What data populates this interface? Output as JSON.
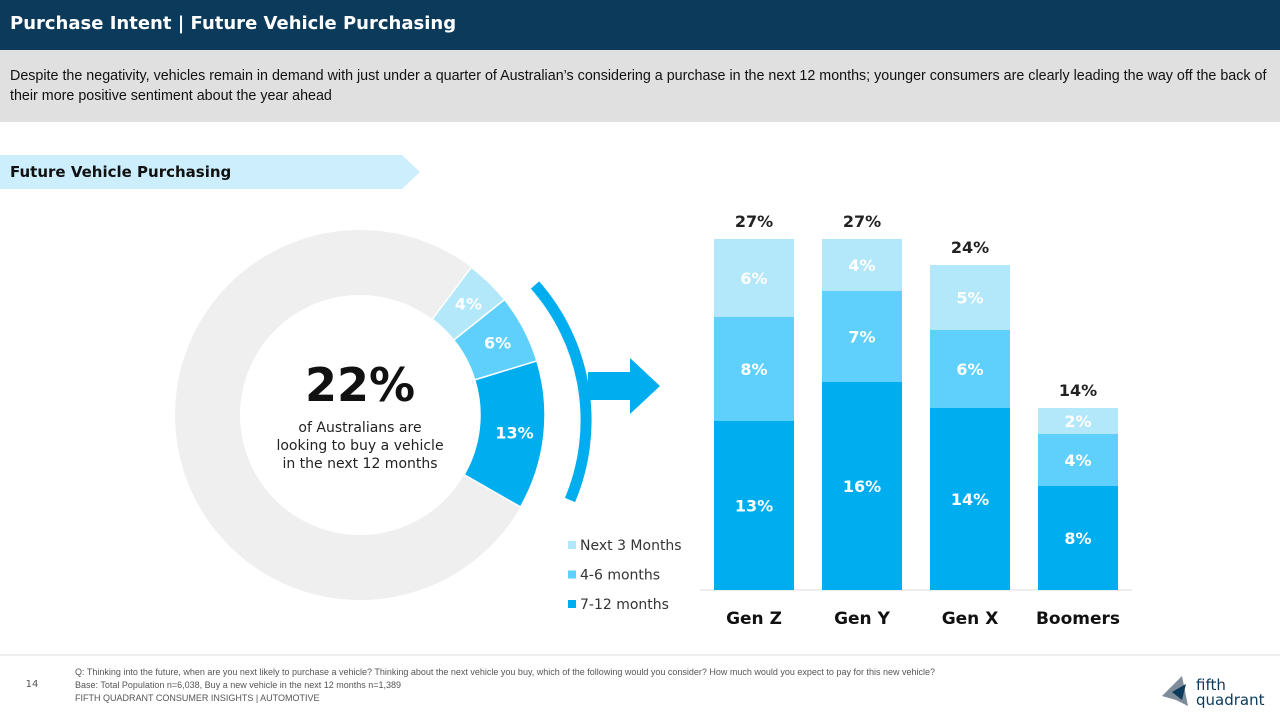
{
  "header": {
    "title": "Purchase Intent | Future Vehicle Purchasing"
  },
  "summary": "Despite the negativity, vehicles remain in demand with just under a quarter of Australian’s considering a purchase in the next 12 months; younger consumers are clearly leading the way off the back of their more positive sentiment about the year ahead",
  "section": "Future Vehicle Purchasing",
  "chart_data": [
    {
      "type": "donut",
      "values": [
        4,
        6,
        13
      ],
      "value_labels": [
        "4%",
        "6%",
        "13%"
      ],
      "colors": [
        "#b3e8fa",
        "#5fd0fb",
        "#00aeef"
      ],
      "center_value": 22,
      "center_label": "22%",
      "center_caption": [
        "of Australians are",
        "looking to buy a vehicle",
        "in the next 12 months"
      ]
    },
    {
      "type": "stacked_bar",
      "categories": [
        "Gen Z",
        "Gen Y",
        "Gen X",
        "Boomers"
      ],
      "series": [
        {
          "name": "7-12 months",
          "color": "#00aeef",
          "values": [
            13,
            16,
            14,
            8
          ],
          "value_labels": [
            "13%",
            "16%",
            "14%",
            "8%"
          ]
        },
        {
          "name": "4-6 months",
          "color": "#5fd0fb",
          "values": [
            8,
            7,
            6,
            4
          ],
          "value_labels": [
            "8%",
            "7%",
            "6%",
            "4%"
          ]
        },
        {
          "name": "Next 3 Months",
          "color": "#b3e8fa",
          "values": [
            6,
            4,
            5,
            2
          ],
          "value_labels": [
            "6%",
            "4%",
            "5%",
            "2%"
          ]
        }
      ],
      "totals": [
        27,
        27,
        24,
        14
      ],
      "total_labels": [
        "27%",
        "27%",
        "24%",
        "14%"
      ]
    }
  ],
  "footer": {
    "page_number": "14",
    "notes": [
      "Q: Thinking into the future, when are you next likely to purchase a vehicle? Thinking about the next vehicle you buy, which of the following would you consider? How much would you expect to pay for this new vehicle?",
      "Base: Total Population n=6,038, Buy a new vehicle in the next 12 months n=1,389",
      "FIFTH QUADRANT CONSUMER INSIGHTS | AUTOMOTIVE"
    ],
    "logo": [
      "fifth",
      "quadrant"
    ]
  }
}
